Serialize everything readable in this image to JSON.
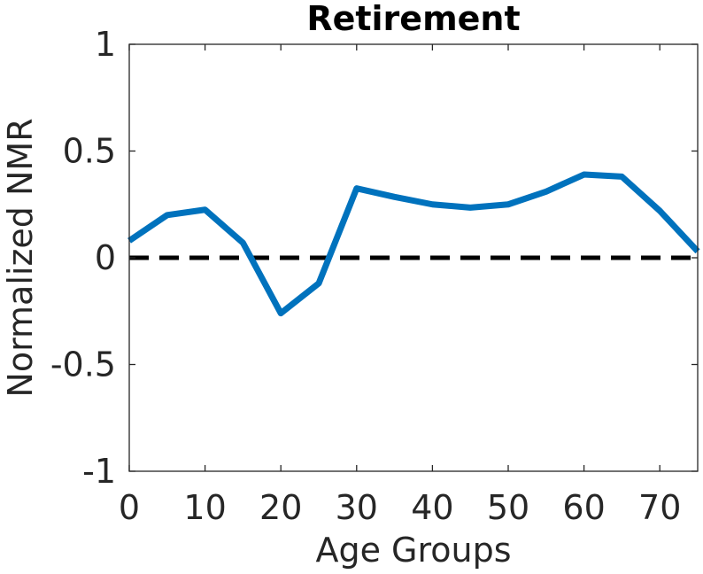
{
  "chart_data": {
    "type": "line",
    "title": "Retirement",
    "xlabel": "Age Groups",
    "ylabel": "Normalized NMR",
    "xlim": [
      0,
      75
    ],
    "ylim": [
      -1,
      1
    ],
    "xticks": [
      "0",
      "10",
      "20",
      "30",
      "40",
      "50",
      "60",
      "70"
    ],
    "yticks": [
      "1",
      "0.5",
      "0",
      "-0.5",
      "-1"
    ],
    "grid": false,
    "series": [
      {
        "color": "#0072BD",
        "x": [
          0,
          5,
          10,
          15,
          20,
          25,
          30,
          35,
          40,
          45,
          50,
          55,
          60,
          65,
          70,
          75
        ],
        "y": [
          0.08,
          0.2,
          0.225,
          0.07,
          -0.26,
          -0.12,
          0.325,
          0.285,
          0.25,
          0.235,
          0.25,
          0.31,
          0.39,
          0.38,
          0.22,
          0.03
        ]
      }
    ],
    "reference_line": {
      "y": 0,
      "style": "dashed",
      "color": "#000000"
    }
  }
}
